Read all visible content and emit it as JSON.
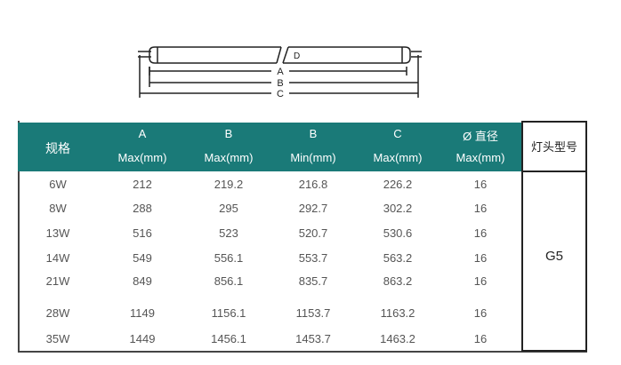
{
  "diagram": {
    "labels": [
      "A",
      "B",
      "C"
    ],
    "marker": "D"
  },
  "table": {
    "headers": [
      {
        "top": "",
        "bottom": "规格"
      },
      {
        "top": "A",
        "bottom": "Max(mm)"
      },
      {
        "top": "B",
        "bottom": "Max(mm)"
      },
      {
        "top": "B",
        "bottom": "Min(mm)"
      },
      {
        "top": "C",
        "bottom": "Max(mm)"
      },
      {
        "top": "Ø 直径",
        "bottom": "Max(mm)"
      }
    ],
    "lamp_header": "灯头型号",
    "lamp_value": "G5",
    "header_color": "#1a7a78",
    "rows": [
      [
        "6W",
        "212",
        "219.2",
        "216.8",
        "226.2",
        "16"
      ],
      [
        "8W",
        "288",
        "295",
        "292.7",
        "302.2",
        "16"
      ],
      [
        "13W",
        "516",
        "523",
        "520.7",
        "530.6",
        "16"
      ],
      [
        "14W",
        "549",
        "556.1",
        "553.7",
        "563.2",
        "16"
      ],
      [
        "21W",
        "849",
        "856.1",
        "835.7",
        "863.2",
        "16"
      ],
      [
        "28W",
        "1149",
        "1156.1",
        "1153.7",
        "1163.2",
        "16"
      ],
      [
        "35W",
        "1449",
        "1456.1",
        "1453.7",
        "1463.2",
        "16"
      ]
    ]
  }
}
